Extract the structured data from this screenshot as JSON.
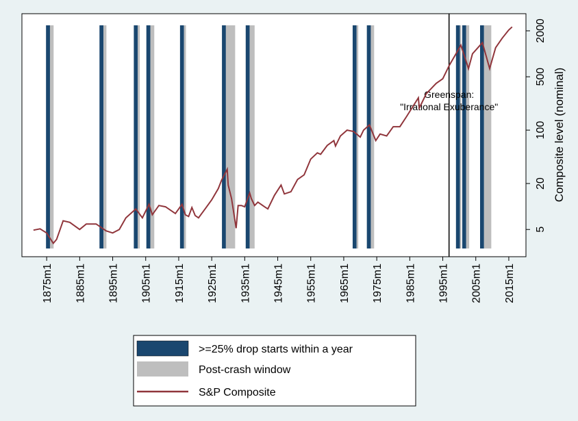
{
  "chart_data": {
    "type": "line",
    "y_axis_title": "Composite level (nominal)",
    "log_y": true,
    "xlim": [
      1867.5,
      2020.2
    ],
    "ylim": [
      2.2,
      3350
    ],
    "xticks": [
      {
        "value": 1875,
        "label": "1875m1"
      },
      {
        "value": 1885,
        "label": "1885m1"
      },
      {
        "value": 1895,
        "label": "1895m1"
      },
      {
        "value": 1905,
        "label": "1905m1"
      },
      {
        "value": 1915,
        "label": "1915m1"
      },
      {
        "value": 1925,
        "label": "1925m1"
      },
      {
        "value": 1935,
        "label": "1935m1"
      },
      {
        "value": 1945,
        "label": "1945m1"
      },
      {
        "value": 1955,
        "label": "1955m1"
      },
      {
        "value": 1965,
        "label": "1965m1"
      },
      {
        "value": 1975,
        "label": "1975m1"
      },
      {
        "value": 1985,
        "label": "1985m1"
      },
      {
        "value": 1995,
        "label": "1995m1"
      },
      {
        "value": 2005,
        "label": "2005m1"
      },
      {
        "value": 2015,
        "label": "2015m1"
      }
    ],
    "yticks": [
      5,
      20,
      100,
      500,
      2000
    ],
    "annotation": {
      "x": 1996.9,
      "lines": [
        "Greenspan:",
        "\"Irrational Exuberance\""
      ]
    },
    "shaded": [
      {
        "name": ">=25% drop starts within a year",
        "color": "#1a476f",
        "spans": [
          [
            1874.8,
            1876.0
          ],
          [
            1891.0,
            1892.2
          ],
          [
            1901.4,
            1902.6
          ],
          [
            1905.2,
            1906.4
          ],
          [
            1915.4,
            1916.6
          ],
          [
            1928.1,
            1929.3
          ],
          [
            1935.3,
            1936.5
          ],
          [
            1967.7,
            1968.9
          ],
          [
            1972.0,
            1973.2
          ],
          [
            1999.0,
            2000.2
          ],
          [
            2000.9,
            2002.1
          ],
          [
            2006.3,
            2007.5
          ]
        ]
      },
      {
        "name": "Post-crash window",
        "color": "#bebebe",
        "spans": [
          [
            1876.0,
            1877.1
          ],
          [
            1892.2,
            1893.1
          ],
          [
            1902.6,
            1903.2
          ],
          [
            1906.4,
            1907.6
          ],
          [
            1916.6,
            1917.2
          ],
          [
            1929.3,
            1932.1
          ],
          [
            1936.5,
            1938.0
          ],
          [
            1968.9,
            1969.4
          ],
          [
            1973.2,
            1974.2
          ],
          [
            2000.2,
            2000.6
          ],
          [
            2002.1,
            2003.0
          ],
          [
            2007.5,
            2009.7
          ]
        ]
      }
    ],
    "x": [
      1871,
      1873,
      1875,
      1877,
      1878,
      1880,
      1882,
      1885,
      1887,
      1890,
      1893,
      1895,
      1897,
      1899,
      1902,
      1904,
      1906,
      1907,
      1909,
      1911,
      1914,
      1916,
      1917,
      1918,
      1919,
      1920,
      1921,
      1923,
      1925,
      1927,
      1928,
      1929.7,
      1930,
      1931,
      1932.4,
      1933,
      1934,
      1935,
      1936.5,
      1937,
      1938,
      1939,
      1941,
      1942,
      1944,
      1946,
      1947,
      1949,
      1951,
      1953,
      1955,
      1957,
      1958,
      1960,
      1962,
      1962.5,
      1964,
      1966,
      1968,
      1970,
      1971,
      1972.8,
      1974.7,
      1976,
      1978,
      1980,
      1982,
      1984,
      1987.6,
      1987.9,
      1990,
      1993,
      1995,
      1997,
      1999,
      2000.5,
      2002.8,
      2004,
      2007,
      2009.2,
      2011,
      2013,
      2015,
      2016
    ],
    "series": [
      {
        "name": "S&P Composite",
        "color": "#90353b",
        "values": [
          4.9,
          5.1,
          4.5,
          3.3,
          3.7,
          6.5,
          6.2,
          5,
          5.9,
          5.9,
          4.8,
          4.5,
          5,
          7.1,
          9.3,
          7.1,
          10.7,
          7.8,
          10.3,
          9.9,
          8.1,
          10.7,
          7.8,
          7.4,
          9.7,
          7.6,
          7.1,
          9.3,
          12.2,
          17.2,
          22.2,
          30.7,
          19.1,
          12.7,
          5.2,
          10.3,
          10.3,
          9.9,
          15,
          12.7,
          10.3,
          11.4,
          9.9,
          9.3,
          14,
          19.1,
          14.6,
          15.6,
          22.6,
          26,
          41.8,
          50.4,
          48.3,
          63,
          73,
          62,
          84,
          100,
          96,
          81,
          100,
          117,
          73,
          89,
          84,
          111,
          111,
          150,
          265,
          195,
          300,
          410,
          470,
          710,
          1000,
          1300,
          640,
          1000,
          1400,
          640,
          1200,
          1600,
          2050,
          2250
        ]
      }
    ]
  }
}
